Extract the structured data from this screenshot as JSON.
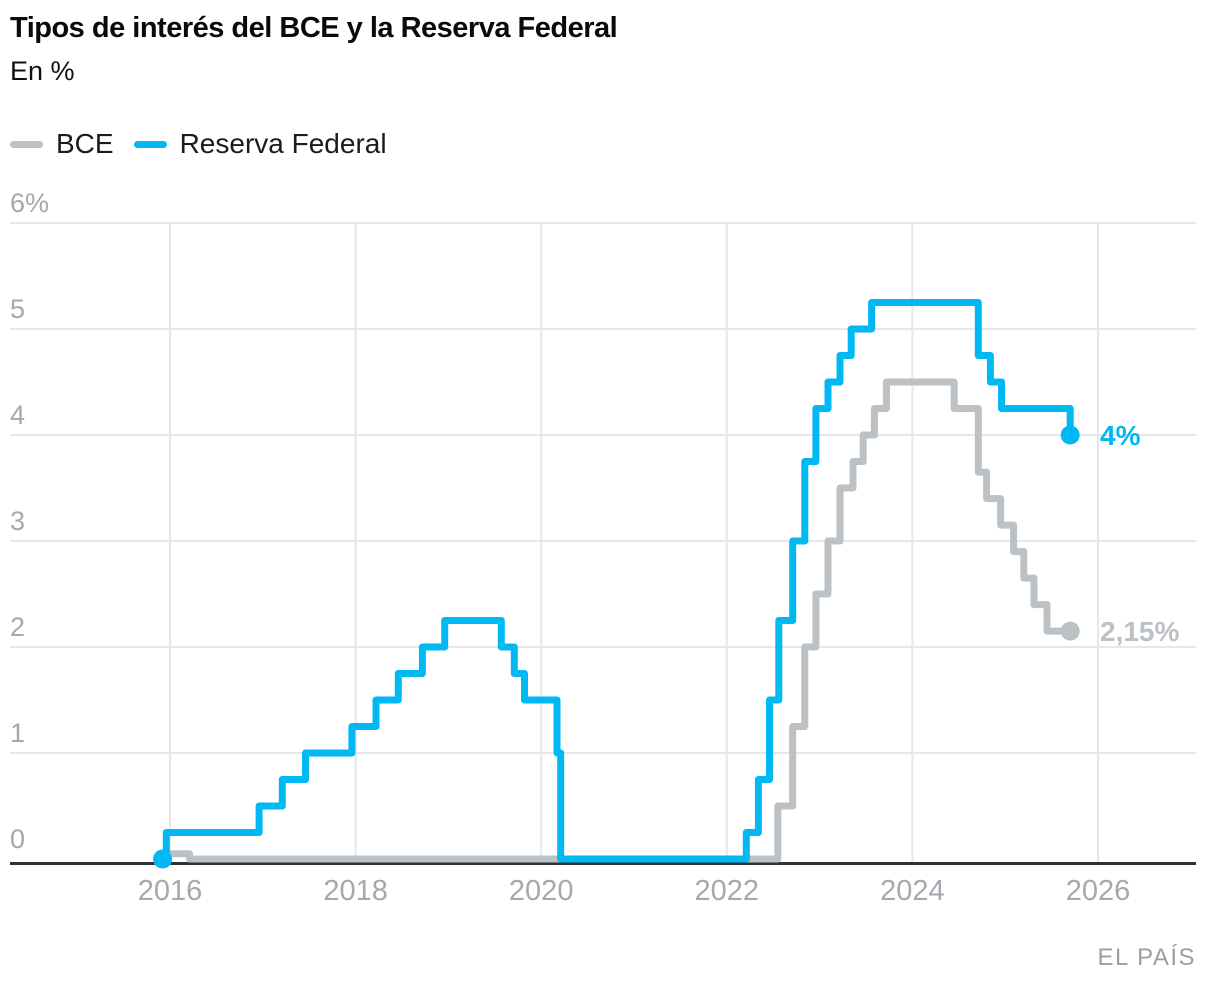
{
  "header": {
    "title": "Tipos de interés del BCE y la Reserva Federal",
    "subtitle": "En %"
  },
  "legend": [
    {
      "label": "BCE",
      "color": "#bcc1c6"
    },
    {
      "label": "Reserva Federal",
      "color": "#00b9f2"
    }
  ],
  "source": {
    "label": "EL PAÍS"
  },
  "chart_data": {
    "type": "line",
    "step": "after",
    "title": "Tipos de interés del BCE y la Reserva Federal",
    "ylabel": "En %",
    "grid": true,
    "legend_position": "top-left",
    "xlim": [
      2015.75,
      2026.9
    ],
    "ylim": [
      0,
      6
    ],
    "x_ticks": [
      {
        "value": 2016,
        "label": "2016"
      },
      {
        "value": 2018,
        "label": "2018"
      },
      {
        "value": 2020,
        "label": "2020"
      },
      {
        "value": 2022,
        "label": "2022"
      },
      {
        "value": 2024,
        "label": "2024"
      },
      {
        "value": 2026,
        "label": "2026"
      }
    ],
    "y_ticks": [
      {
        "value": 6,
        "label": "6%"
      },
      {
        "value": 5,
        "label": "5"
      },
      {
        "value": 4,
        "label": "4"
      },
      {
        "value": 3,
        "label": "3"
      },
      {
        "value": 2,
        "label": "2"
      },
      {
        "value": 1,
        "label": "1"
      },
      {
        "value": 0,
        "label": "0"
      }
    ],
    "series": [
      {
        "name": "BCE",
        "color": "#bcc1c6",
        "end_label": "2,15%",
        "end_dot": true,
        "start_dot": false,
        "points": [
          [
            2015.92,
            0.05
          ],
          [
            2016.21,
            0
          ],
          [
            2022.55,
            0.5
          ],
          [
            2022.71,
            1.25
          ],
          [
            2022.84,
            2.0
          ],
          [
            2022.96,
            2.5
          ],
          [
            2023.09,
            3.0
          ],
          [
            2023.22,
            3.5
          ],
          [
            2023.36,
            3.75
          ],
          [
            2023.47,
            4.0
          ],
          [
            2023.59,
            4.25
          ],
          [
            2023.72,
            4.5
          ],
          [
            2024.45,
            4.25
          ],
          [
            2024.71,
            3.65
          ],
          [
            2024.8,
            3.4
          ],
          [
            2024.95,
            3.15
          ],
          [
            2025.09,
            2.9
          ],
          [
            2025.2,
            2.65
          ],
          [
            2025.31,
            2.4
          ],
          [
            2025.45,
            2.15
          ],
          [
            2025.7,
            2.15
          ]
        ]
      },
      {
        "name": "Reserva Federal",
        "color": "#00b9f2",
        "end_label": "4%",
        "end_dot": true,
        "start_dot": true,
        "points": [
          [
            2015.92,
            0
          ],
          [
            2015.96,
            0.25
          ],
          [
            2016.96,
            0.5
          ],
          [
            2017.21,
            0.75
          ],
          [
            2017.46,
            1.0
          ],
          [
            2017.96,
            1.25
          ],
          [
            2018.22,
            1.5
          ],
          [
            2018.46,
            1.75
          ],
          [
            2018.72,
            2.0
          ],
          [
            2018.96,
            2.25
          ],
          [
            2019.57,
            2.0
          ],
          [
            2019.71,
            1.75
          ],
          [
            2019.82,
            1.5
          ],
          [
            2020.17,
            1.0
          ],
          [
            2020.21,
            0
          ],
          [
            2022.21,
            0.25
          ],
          [
            2022.34,
            0.75
          ],
          [
            2022.46,
            1.5
          ],
          [
            2022.56,
            2.25
          ],
          [
            2022.71,
            3.0
          ],
          [
            2022.84,
            3.75
          ],
          [
            2022.96,
            4.25
          ],
          [
            2023.09,
            4.5
          ],
          [
            2023.22,
            4.75
          ],
          [
            2023.34,
            5.0
          ],
          [
            2023.56,
            5.25
          ],
          [
            2024.71,
            4.75
          ],
          [
            2024.84,
            4.5
          ],
          [
            2024.96,
            4.25
          ],
          [
            2025.7,
            4.0
          ]
        ]
      }
    ]
  }
}
